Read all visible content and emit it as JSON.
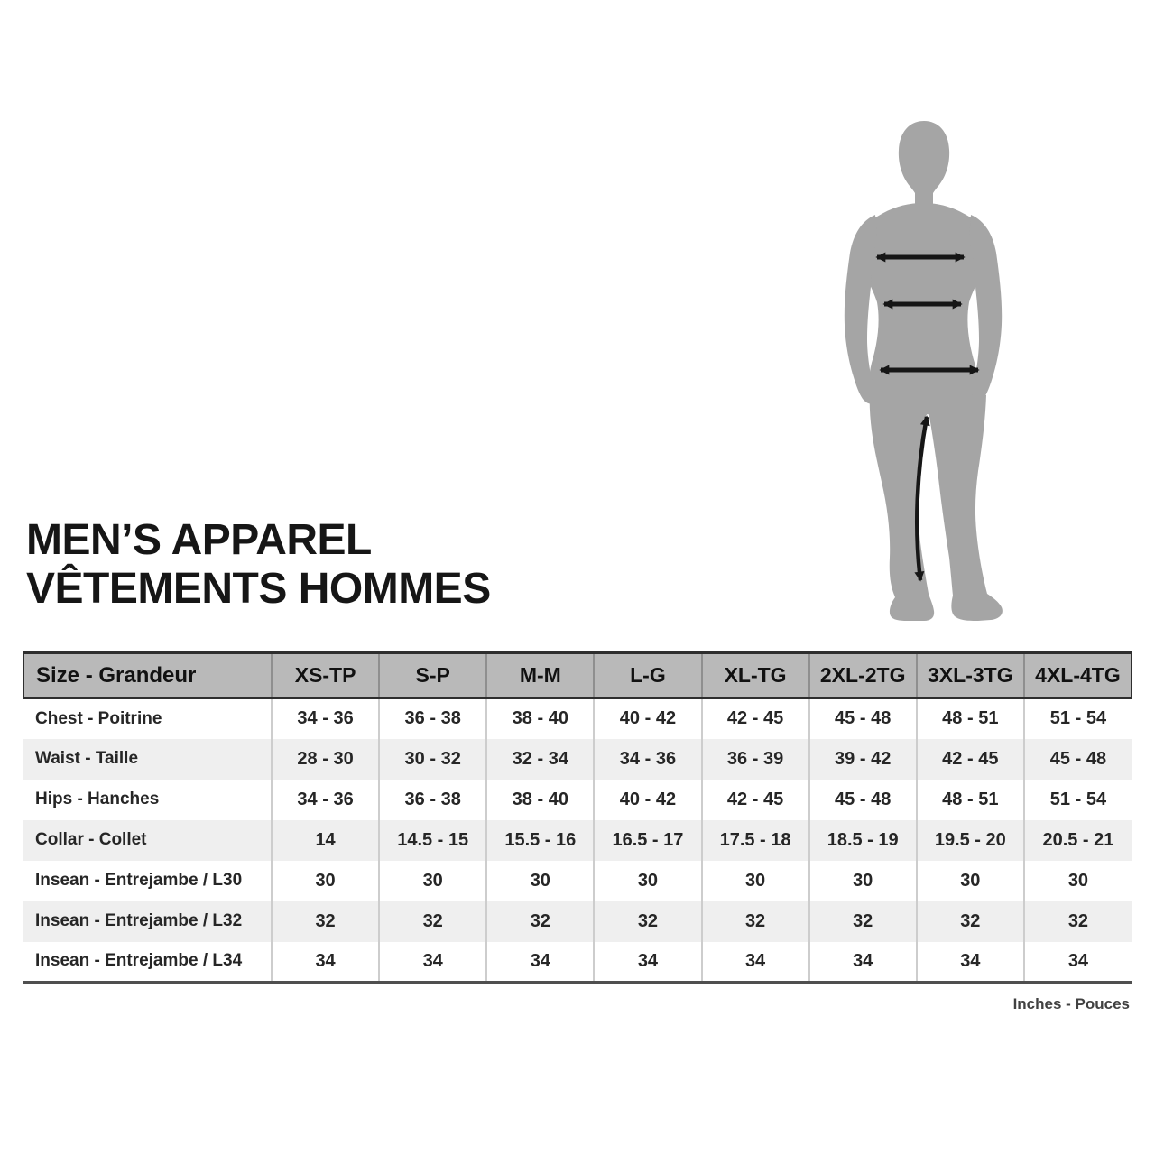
{
  "title": {
    "line1": "MEN’S APPAREL",
    "line2": "VÊTEMENTS HOMMES"
  },
  "figure": {
    "description": "gray male body silhouette with measurement arrows",
    "measurements": [
      "chest",
      "waist",
      "hips",
      "inseam"
    ]
  },
  "table": {
    "header": [
      "Size - Grandeur",
      "XS-TP",
      "S-P",
      "M-M",
      "L-G",
      "XL-TG",
      "2XL-2TG",
      "3XL-3TG",
      "4XL-4TG"
    ],
    "rows": [
      {
        "label": "Chest - Poitrine",
        "values": [
          "34 - 36",
          "36 - 38",
          "38 - 40",
          "40 - 42",
          "42 - 45",
          "45 - 48",
          "48 - 51",
          "51 - 54"
        ]
      },
      {
        "label": "Waist - Taille",
        "values": [
          "28 - 30",
          "30 - 32",
          "32 - 34",
          "34 - 36",
          "36 - 39",
          "39 - 42",
          "42 - 45",
          "45 - 48"
        ]
      },
      {
        "label": "Hips - Hanches",
        "values": [
          "34 - 36",
          "36 - 38",
          "38 - 40",
          "40 - 42",
          "42 - 45",
          "45 - 48",
          "48 - 51",
          "51 - 54"
        ]
      },
      {
        "label": "Collar - Collet",
        "values": [
          "14",
          "14.5 - 15",
          "15.5 - 16",
          "16.5 - 17",
          "17.5 - 18",
          "18.5 - 19",
          "19.5 - 20",
          "20.5 - 21"
        ]
      },
      {
        "label": "Insean - Entrejambe / L30",
        "values": [
          "30",
          "30",
          "30",
          "30",
          "30",
          "30",
          "30",
          "30"
        ]
      },
      {
        "label": "Insean - Entrejambe / L32",
        "values": [
          "32",
          "32",
          "32",
          "32",
          "32",
          "32",
          "32",
          "32"
        ]
      },
      {
        "label": "Insean - Entrejambe / L34",
        "values": [
          "34",
          "34",
          "34",
          "34",
          "34",
          "34",
          "34",
          "34"
        ]
      }
    ]
  },
  "footer": {
    "units_label": "Inches - Pouces"
  },
  "colors": {
    "header_bg": "#b9b9b9",
    "row_alt_bg": "#efefef",
    "border_dark": "#2e2e2e",
    "border_bottom": "#4f4f4f",
    "sep_header": "#8f8f8f",
    "sep_body": "#cdcdcd",
    "text": "#262626",
    "title": "#161616",
    "silhouette": "#a5a5a5",
    "arrow": "#161616",
    "units": "#414141"
  }
}
